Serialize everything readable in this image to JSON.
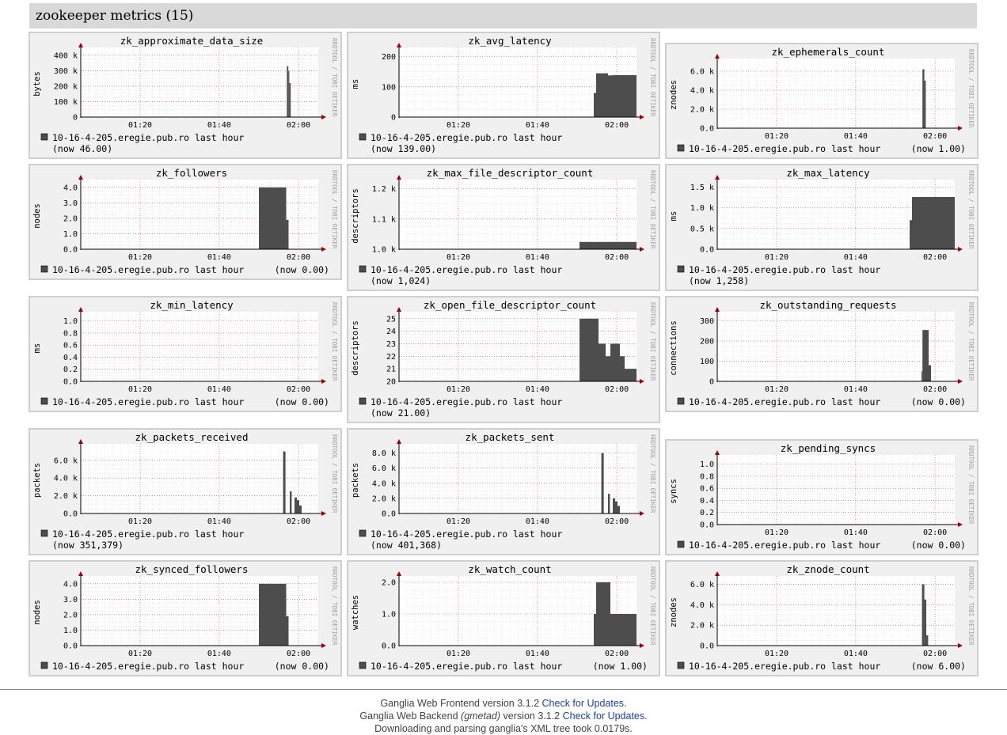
{
  "page": {
    "section_title": "zookeeper metrics (15)",
    "footer": {
      "frontend_prefix": "Ganglia Web Frontend version 3.1.2",
      "backend_prefix": "Ganglia Web Backend",
      "backend_gmetad": "(gmetad)",
      "backend_version": "version 3.1.2",
      "check_updates": "Check for Updates.",
      "parse_text": "Downloading and parsing ganglia's XML tree took 0.0179s."
    }
  },
  "graph_common": {
    "x_ticks": [
      "01:20",
      "01:40",
      "02:00"
    ],
    "host_label": "10-16-4-205.eregie.pub.ro last hour",
    "watermark": "RRDTOOL / TOBI OETIKER",
    "colors": {
      "fill": "#4d4d4d",
      "grid": "#e04050",
      "minor_grid": "#d0d0d0",
      "background": "#f0f0f0",
      "axis": "#a00000"
    }
  },
  "graphs": [
    {
      "title": "zk_approximate_data_size",
      "ylabel": "bytes",
      "y_ticks": [
        "0",
        "100 k",
        "200 k",
        "300 k",
        "400 k"
      ],
      "ymax": 430000,
      "now": "(now 46.00)",
      "now_inline": false,
      "series": [
        [
          0.862,
          0.868,
          0
        ],
        [
          0.868,
          0.874,
          330000
        ],
        [
          0.874,
          0.878,
          300000
        ],
        [
          0.878,
          0.884,
          220000
        ],
        [
          0.884,
          0.888,
          0
        ]
      ]
    },
    {
      "title": "zk_avg_latency",
      "ylabel": "ms",
      "y_ticks": [
        "0",
        "100",
        "200"
      ],
      "ymax": 220,
      "now": "(now 139.00)",
      "now_inline": false,
      "series": [
        [
          0.82,
          0.83,
          80
        ],
        [
          0.83,
          0.88,
          145
        ],
        [
          0.88,
          0.9,
          138
        ],
        [
          0.9,
          1.0,
          139
        ]
      ]
    },
    {
      "title": "zk_ephemerals_count",
      "ylabel": "znodes",
      "y_ticks": [
        "0.0",
        "2.0 k",
        "4.0 k",
        "6.0 k"
      ],
      "ymax": 7000,
      "now": "(now 1.00)",
      "now_inline": true,
      "series": [
        [
          0.864,
          0.872,
          6200
        ],
        [
          0.872,
          0.878,
          5000
        ]
      ]
    },
    {
      "title": "zk_followers",
      "ylabel": "nodes",
      "y_ticks": [
        "0.0",
        "1.0",
        "2.0",
        "3.0",
        "4.0"
      ],
      "ymax": 4.3,
      "now": "(now 0.00)",
      "now_inline": true,
      "series": [
        [
          0.75,
          0.865,
          4
        ],
        [
          0.865,
          0.875,
          1.9
        ]
      ]
    },
    {
      "title": "zk_max_file_descriptor_count",
      "ylabel": "descriptors",
      "y_ticks": [
        "1.0 k",
        "1.1 k",
        "1.2 k"
      ],
      "ymax": 1220,
      "ymin": 1000,
      "now": "(now 1,024)",
      "now_inline": false,
      "series": [
        [
          0.76,
          1.0,
          1024
        ]
      ]
    },
    {
      "title": "zk_max_latency",
      "ylabel": "ms",
      "y_ticks": [
        "0.0",
        "0.5 k",
        "1.0 k",
        "1.5 k"
      ],
      "ymax": 1600,
      "now": "(now 1,258)",
      "now_inline": false,
      "series": [
        [
          0.81,
          0.82,
          700
        ],
        [
          0.82,
          1.0,
          1258
        ]
      ]
    },
    {
      "title": "zk_min_latency",
      "ylabel": "ms",
      "y_ticks": [
        "0.0",
        "0.2",
        "0.4",
        "0.6",
        "0.8",
        "1.0"
      ],
      "ymax": 1.1,
      "now": "(now 0.00)",
      "now_inline": true,
      "series": []
    },
    {
      "title": "zk_open_file_descriptor_count",
      "ylabel": "descriptors",
      "y_ticks": [
        "20",
        "21",
        "22",
        "23",
        "24",
        "25"
      ],
      "ymax": 25.3,
      "ymin": 20,
      "now": "(now 21.00)",
      "now_inline": false,
      "series": [
        [
          0.76,
          0.84,
          25
        ],
        [
          0.84,
          0.87,
          23
        ],
        [
          0.87,
          0.89,
          22
        ],
        [
          0.89,
          0.93,
          23
        ],
        [
          0.93,
          0.95,
          22
        ],
        [
          0.95,
          1.0,
          21
        ]
      ]
    },
    {
      "title": "zk_outstanding_requests",
      "ylabel": "connections",
      "y_ticks": [
        "0",
        "100",
        "200",
        "300"
      ],
      "ymax": 330,
      "now": "(now 0.00)",
      "now_inline": true,
      "series": [
        [
          0.86,
          0.864,
          50
        ],
        [
          0.864,
          0.89,
          255
        ],
        [
          0.89,
          0.9,
          80
        ]
      ]
    },
    {
      "title": "zk_packets_received",
      "ylabel": "packets",
      "y_ticks": [
        "0.0",
        "2.0 k",
        "4.0 k",
        "6.0 k"
      ],
      "ymax": 7500,
      "now": "(now 351,379)",
      "now_inline": false,
      "series": [
        [
          0.852,
          0.862,
          7000
        ],
        [
          0.88,
          0.888,
          2500
        ],
        [
          0.9,
          0.91,
          1800
        ],
        [
          0.91,
          0.92,
          1500
        ],
        [
          0.92,
          0.93,
          900
        ]
      ]
    },
    {
      "title": "zk_packets_sent",
      "ylabel": "packets",
      "y_ticks": [
        "0.0",
        "2.0 k",
        "4.0 k",
        "6.0 k",
        "8.0 k"
      ],
      "ymax": 8800,
      "now": "(now 401,368)",
      "now_inline": false,
      "series": [
        [
          0.852,
          0.862,
          8000
        ],
        [
          0.88,
          0.888,
          2600
        ],
        [
          0.9,
          0.91,
          2000
        ],
        [
          0.91,
          0.92,
          1600
        ],
        [
          0.92,
          0.93,
          1000
        ]
      ]
    },
    {
      "title": "zk_pending_syncs",
      "ylabel": "syncs",
      "y_ticks": [
        "0.0",
        "0.2",
        "0.4",
        "0.6",
        "0.8",
        "1.0"
      ],
      "ymax": 1.1,
      "now": "(now 0.00)",
      "now_inline": true,
      "series": []
    },
    {
      "title": "zk_synced_followers",
      "ylabel": "nodes",
      "y_ticks": [
        "0.0",
        "1.0",
        "2.0",
        "3.0",
        "4.0"
      ],
      "ymax": 4.3,
      "now": "(now 0.00)",
      "now_inline": true,
      "series": [
        [
          0.75,
          0.865,
          4
        ],
        [
          0.865,
          0.875,
          1.9
        ]
      ]
    },
    {
      "title": "zk_watch_count",
      "ylabel": "watches",
      "y_ticks": [
        "0.0",
        "1.0",
        "2.0"
      ],
      "ymax": 2.1,
      "now": "(now 1.00)",
      "now_inline": true,
      "series": [
        [
          0.82,
          0.83,
          1
        ],
        [
          0.83,
          0.89,
          2
        ],
        [
          0.89,
          1.0,
          1
        ]
      ]
    },
    {
      "title": "zk_znode_count",
      "ylabel": "znodes",
      "y_ticks": [
        "0.0",
        "2.0 k",
        "4.0 k",
        "6.0 k"
      ],
      "ymax": 6500,
      "now": "(now 6.00)",
      "now_inline": true,
      "series": [
        [
          0.862,
          0.872,
          6000
        ],
        [
          0.872,
          0.88,
          4500
        ],
        [
          0.88,
          0.888,
          1000
        ]
      ]
    }
  ]
}
